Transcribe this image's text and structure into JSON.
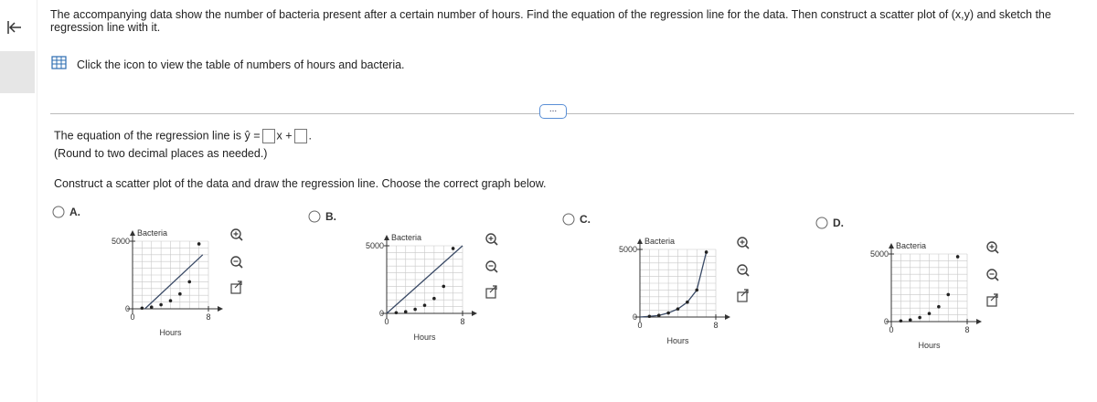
{
  "question": "The accompanying data show the number of bacteria present after a certain number of hours. Find the equation of the regression line for the data. Then construct a scatter plot of (x,y) and sketch the regression line with it.",
  "table_link": "Click the icon to view the table of numbers of hours and bacteria.",
  "more_button": "...",
  "equation": {
    "prefix": "The equation of the regression line is",
    "y_hat": "ŷ =",
    "x_plus": "x +",
    "end": "."
  },
  "round_note": "(Round to two decimal places as needed.)",
  "instruction": "Construct a scatter plot of the data and draw the regression line. Choose the correct graph below.",
  "options": [
    {
      "label": "A.",
      "y_axis_label": "Bacteria",
      "x_axis_label": "Hours",
      "xlim": [
        0,
        8
      ],
      "ylim": [
        0,
        5000
      ],
      "xticks": [
        0,
        8
      ],
      "yticks": [
        0,
        5000
      ],
      "points_x": [
        1,
        2,
        3,
        4,
        5,
        6,
        7
      ],
      "points_y": [
        50,
        120,
        300,
        600,
        1100,
        2000,
        4800
      ],
      "line_x": [
        1.3,
        7.4
      ],
      "line_y": [
        0,
        4000
      ],
      "line_color": "#3a4a66"
    },
    {
      "label": "B.",
      "y_axis_label": "Bacteria",
      "x_axis_label": "Hours",
      "xlim": [
        0,
        8
      ],
      "ylim": [
        0,
        5000
      ],
      "xticks": [
        0,
        8
      ],
      "yticks": [
        0,
        5000
      ],
      "points_x": [
        1,
        2,
        3,
        4,
        5,
        6,
        7
      ],
      "points_y": [
        50,
        120,
        300,
        600,
        1100,
        2000,
        4800
      ],
      "line_x": [
        0,
        8
      ],
      "line_y": [
        0,
        5000
      ],
      "line_color": "#3a4a66"
    },
    {
      "label": "C.",
      "y_axis_label": "Bacteria",
      "x_axis_label": "Hours",
      "xlim": [
        0,
        8
      ],
      "ylim": [
        0,
        5000
      ],
      "xticks": [
        0,
        8
      ],
      "yticks": [
        0,
        5000
      ],
      "points_x": [
        1,
        2,
        3,
        4,
        5,
        6,
        7
      ],
      "points_y": [
        50,
        120,
        300,
        600,
        1100,
        2000,
        4800
      ],
      "line_x": [
        0,
        1,
        2,
        3,
        4,
        5,
        6,
        7
      ],
      "line_y": [
        0,
        50,
        120,
        300,
        600,
        1100,
        2000,
        4800
      ],
      "line_color": "#3a4a66"
    },
    {
      "label": "D.",
      "y_axis_label": "Bacteria",
      "x_axis_label": "Hours",
      "xlim": [
        0,
        8
      ],
      "ylim": [
        0,
        5000
      ],
      "xticks": [
        0,
        8
      ],
      "yticks": [
        0,
        5000
      ],
      "points_x": [
        1,
        2,
        3,
        4,
        5,
        6,
        7
      ],
      "points_y": [
        50,
        120,
        300,
        600,
        1100,
        2000,
        4800
      ],
      "line_x": [],
      "line_y": [],
      "line_color": "#3a4a66"
    }
  ]
}
